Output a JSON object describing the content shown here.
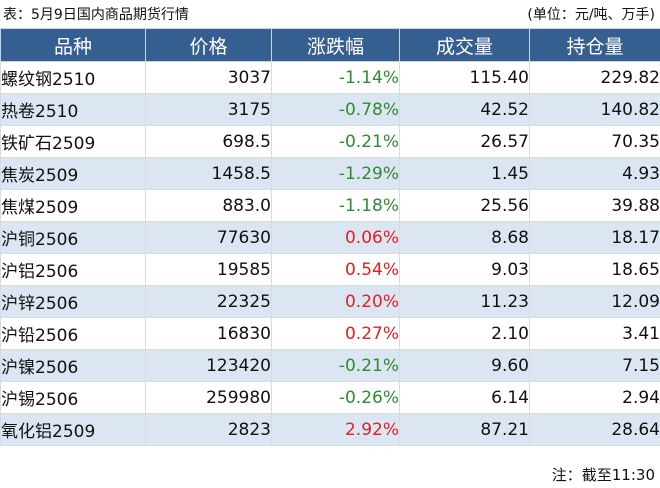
{
  "caption": {
    "title": "表：5月9日国内商品期货行情",
    "unit": "(单位：元/吨、万手)"
  },
  "table": {
    "headers": [
      "品种",
      "价格",
      "涨跌幅",
      "成交量",
      "持仓量"
    ],
    "rows": [
      {
        "name": "螺纹钢2510",
        "price": "3037",
        "change": "-1.14%",
        "volume": "115.40",
        "open_interest": "229.82"
      },
      {
        "name": "热卷2510",
        "price": "3175",
        "change": "-0.78%",
        "volume": "42.52",
        "open_interest": "140.82"
      },
      {
        "name": "铁矿石2509",
        "price": "698.5",
        "change": "-0.21%",
        "volume": "26.57",
        "open_interest": "70.35"
      },
      {
        "name": "焦炭2509",
        "price": "1458.5",
        "change": "-1.29%",
        "volume": "1.45",
        "open_interest": "4.93"
      },
      {
        "name": "焦煤2509",
        "price": "883.0",
        "change": "-1.18%",
        "volume": "25.56",
        "open_interest": "39.88"
      },
      {
        "name": "沪铜2506",
        "price": "77630",
        "change": "0.06%",
        "volume": "8.68",
        "open_interest": "18.17"
      },
      {
        "name": "沪铝2506",
        "price": "19585",
        "change": "0.54%",
        "volume": "9.03",
        "open_interest": "18.65"
      },
      {
        "name": "沪锌2506",
        "price": "22325",
        "change": "0.20%",
        "volume": "11.23",
        "open_interest": "12.09"
      },
      {
        "name": "沪铅2506",
        "price": "16830",
        "change": "0.27%",
        "volume": "2.10",
        "open_interest": "3.41"
      },
      {
        "name": "沪镍2506",
        "price": "123420",
        "change": "-0.21%",
        "volume": "9.60",
        "open_interest": "7.15"
      },
      {
        "name": "沪锡2506",
        "price": "259980",
        "change": "-0.26%",
        "volume": "6.14",
        "open_interest": "2.94"
      },
      {
        "name": "氧化铝2509",
        "price": "2823",
        "change": "2.92%",
        "volume": "87.21",
        "open_interest": "28.64"
      }
    ]
  },
  "footer": {
    "note": "注：截至11:30"
  },
  "colors": {
    "header_bg": "#365f91",
    "alt_row_bg": "#dce6f2",
    "negative": "#2e8b2e",
    "positive": "#e02020"
  }
}
